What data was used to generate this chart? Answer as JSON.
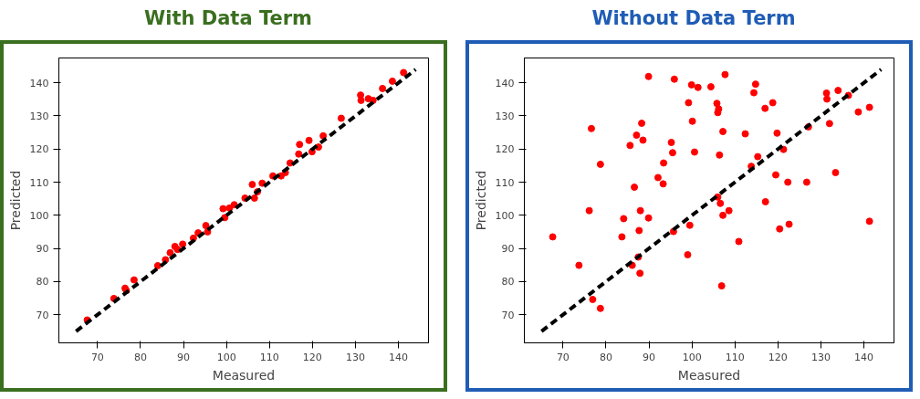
{
  "chart_data": [
    {
      "type": "scatter",
      "title": "With Data Term",
      "xlabel": "Measured",
      "ylabel": "Predicted",
      "xlim": [
        61,
        147
      ],
      "ylim": [
        61.5,
        147.5
      ],
      "xticks": [
        70,
        80,
        90,
        100,
        110,
        120,
        130,
        140
      ],
      "yticks": [
        70,
        80,
        90,
        100,
        110,
        120,
        130,
        140
      ],
      "grid": false,
      "series": [
        {
          "marker": "circle",
          "color": "#ff0000",
          "x": [
            67.6,
            73.8,
            76.4,
            76.7,
            78.5,
            84.0,
            85.8,
            86.9,
            88.0,
            88.6,
            89.8,
            92.3,
            93.4,
            95.2,
            95.6,
            99.2,
            99.6,
            100.7,
            101.8,
            104.3,
            106.0,
            106.5,
            107.2,
            108.3,
            110.8,
            112.7,
            113.7,
            114.8,
            116.8,
            117.0,
            119.2,
            119.9,
            121.4,
            122.5,
            126.7,
            131.2,
            131.3,
            133.0,
            134.1,
            136.3,
            138.6,
            141.2
          ],
          "values": [
            68.4,
            74.9,
            78.0,
            77.3,
            80.5,
            84.8,
            86.6,
            88.7,
            90.6,
            89.7,
            91.3,
            93.1,
            94.7,
            96.9,
            95.0,
            102.0,
            99.3,
            102.2,
            103.2,
            105.2,
            109.3,
            105.2,
            107.1,
            109.7,
            111.9,
            111.9,
            112.9,
            115.8,
            118.5,
            121.4,
            122.6,
            119.2,
            120.6,
            124.0,
            129.3,
            136.3,
            134.7,
            135.2,
            134.7,
            138.3,
            140.5,
            143.1
          ]
        },
        {
          "type": "line",
          "color": "#000000",
          "line_style": "dashed",
          "x": [
            65,
            144
          ],
          "values": [
            65,
            144
          ]
        }
      ]
    },
    {
      "type": "scatter",
      "title": "Without Data Term",
      "xlabel": "Measured",
      "ylabel": "Predicted",
      "xlim": [
        61,
        147
      ],
      "ylim": [
        61.5,
        147.5
      ],
      "xticks": [
        70,
        80,
        90,
        100,
        110,
        120,
        130,
        140
      ],
      "yticks": [
        70,
        80,
        90,
        100,
        110,
        120,
        130,
        140
      ],
      "grid": false,
      "series": [
        {
          "marker": "circle",
          "color": "#ff0000",
          "x": [
            67.6,
            73.7,
            76.1,
            76.6,
            76.9,
            78.7,
            78.7,
            83.7,
            84.1,
            85.6,
            86.1,
            86.6,
            87.1,
            87.5,
            87.7,
            87.9,
            88.0,
            88.3,
            88.6,
            89.9,
            89.9,
            92.1,
            93.3,
            93.4,
            95.2,
            95.5,
            95.7,
            95.9,
            99.0,
            99.2,
            99.5,
            99.9,
            100.1,
            100.6,
            101.4,
            104.4,
            105.8,
            106.0,
            106.2,
            106.0,
            106.4,
            106.6,
            106.9,
            107.2,
            107.2,
            107.7,
            108.6,
            110.9,
            112.4,
            113.8,
            114.4,
            114.8,
            115.3,
            117.0,
            117.1,
            118.8,
            119.5,
            119.8,
            120.4,
            121.3,
            122.3,
            122.6,
            126.7,
            127.1,
            131.3,
            131.4,
            132.0,
            133.4,
            134.0,
            136.4,
            138.7,
            141.3,
            141.3
          ],
          "values": [
            93.5,
            84.9,
            101.4,
            126.2,
            74.6,
            71.9,
            115.4,
            93.5,
            99.0,
            121.1,
            84.9,
            108.5,
            124.2,
            87.4,
            95.4,
            82.5,
            101.4,
            127.8,
            122.7,
            99.2,
            141.9,
            111.4,
            109.5,
            115.8,
            122.0,
            118.9,
            95.1,
            141.1,
            88.1,
            134.0,
            97.0,
            139.4,
            128.4,
            119.1,
            138.6,
            138.8,
            133.8,
            105.5,
            132.1,
            131.0,
            118.2,
            103.6,
            78.7,
            125.3,
            100.0,
            142.5,
            101.4,
            92.1,
            124.6,
            114.8,
            137.0,
            139.6,
            117.7,
            132.3,
            104.1,
            134.0,
            112.2,
            124.8,
            95.9,
            119.9,
            110.0,
            97.3,
            110.0,
            126.7,
            136.9,
            135.1,
            127.7,
            112.9,
            137.7,
            136.2,
            131.2,
            132.6,
            98.2
          ]
        },
        {
          "type": "line",
          "color": "#000000",
          "line_style": "dashed",
          "x": [
            65,
            144
          ],
          "values": [
            65,
            144
          ]
        }
      ]
    }
  ]
}
